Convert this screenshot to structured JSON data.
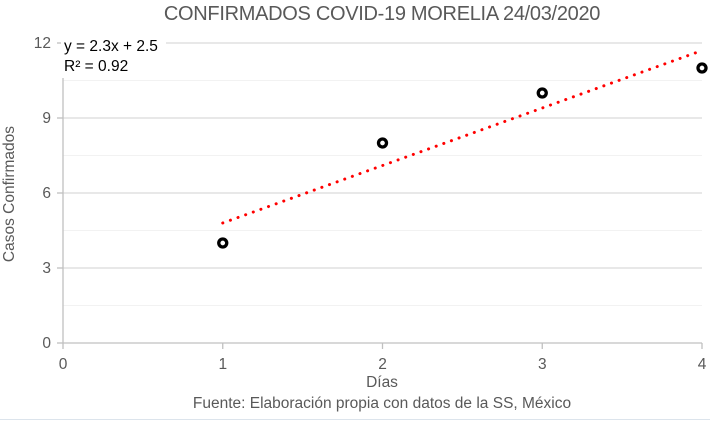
{
  "footer": "Fuente: Elaboración propia con datos de la SS, México",
  "colors": {
    "title_text": "#595959",
    "axis_text": "#595959",
    "axis_line": "#c0c0c0",
    "gridline_major": "#d9d9d9",
    "gridline_minor": "#f2f2f2",
    "marker_stroke": "#000000",
    "marker_fill": "#ffffff",
    "trendline": "#ff0000",
    "annotation_text": "#000000",
    "bottom_border": "#dce4ec"
  },
  "chart_data": {
    "type": "scatter",
    "title": "CONFIRMADOS COVID-19 MORELIA 24/03/2020",
    "xlabel": "Días",
    "ylabel": "Casos Confirmados",
    "x": [
      1,
      2,
      3,
      4
    ],
    "y": [
      4,
      8,
      10,
      11
    ],
    "xlim": [
      0,
      4
    ],
    "ylim": [
      0,
      12
    ],
    "x_ticks": [
      0,
      1,
      2,
      3,
      4
    ],
    "y_ticks": [
      0,
      3,
      6,
      9,
      12
    ],
    "y_minor_interval": 1.5,
    "grid": "horizontal major and minor, no vertical",
    "legend": "none",
    "trendline": {
      "type": "linear",
      "slope": 2.3,
      "intercept": 2.5,
      "x_start": 1.0,
      "x_end": 4.0,
      "style": "dotted",
      "equation": "y = 2.3x + 2.5",
      "r2": "R² = 0.92"
    }
  }
}
